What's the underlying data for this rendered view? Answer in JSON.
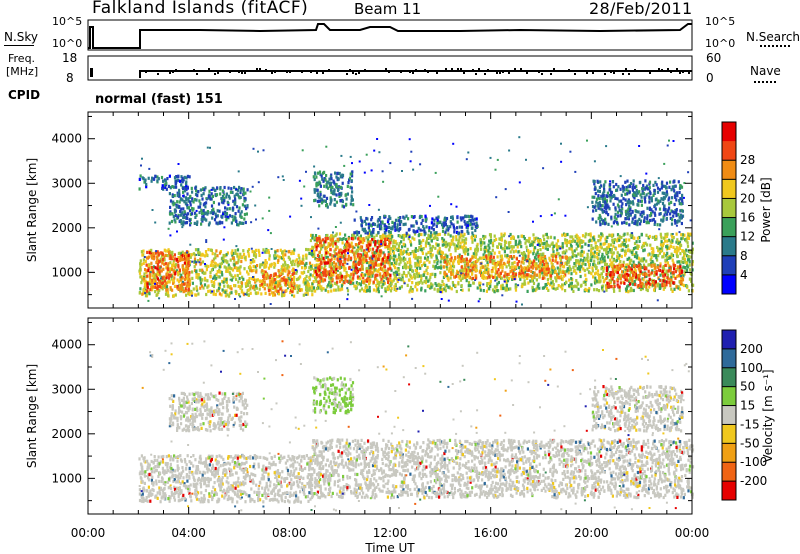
{
  "header": {
    "station": "Falkland Islands (fitACF)",
    "beam": "Beam 11",
    "date": "28/Feb/2011"
  },
  "top_panels": {
    "nsky_label": "N.Sky",
    "nsky_ticks": [
      "10^5",
      "10^0"
    ],
    "nsearch_label": "N.Search",
    "nsearch_ticks": [
      "10^5",
      "10^0"
    ],
    "freq_label_1": "Freq.",
    "freq_label_2": "[MHz]",
    "freq_ticks": [
      "18",
      "8"
    ],
    "nave_label": "Nave",
    "nave_ticks": [
      "60",
      "0"
    ],
    "cpid_label": "CPID",
    "cpid_text": "normal (fast) 151"
  },
  "chart_data": [
    {
      "type": "heatmap",
      "title": "",
      "ylabel": "Slant Range [km]",
      "xlabel": "",
      "yticks": [
        "1000",
        "2000",
        "3000",
        "4000"
      ],
      "ylim": [
        200,
        4600
      ],
      "xlim": [
        0,
        24
      ],
      "colorbar": {
        "label": "Power [dB]",
        "ticks": [
          "4",
          "8",
          "12",
          "16",
          "20",
          "24",
          "28"
        ],
        "range": [
          0,
          32
        ],
        "colors": [
          "#0000ff",
          "#1f3fb8",
          "#2a7a8a",
          "#3aa05a",
          "#a8c83c",
          "#f0c81e",
          "#f08c14",
          "#f04614",
          "#e60000"
        ]
      },
      "regions": [
        {
          "t0": 2.0,
          "t1": 8.9,
          "r0": 500,
          "r1": 1550,
          "level": 18
        },
        {
          "t0": 2.2,
          "t1": 4.0,
          "r0": 600,
          "r1": 1500,
          "level": 26
        },
        {
          "t0": 6.8,
          "t1": 8.2,
          "r0": 600,
          "r1": 1100,
          "level": 25
        },
        {
          "t0": 3.2,
          "t1": 6.3,
          "r0": 2100,
          "r1": 2950,
          "level": 8
        },
        {
          "t0": 2.0,
          "t1": 4.0,
          "r0": 2900,
          "r1": 3200,
          "level": 6
        },
        {
          "t0": 8.8,
          "t1": 24,
          "r0": 600,
          "r1": 1900,
          "level": 16
        },
        {
          "t0": 9.0,
          "t1": 12.0,
          "r0": 800,
          "r1": 1800,
          "level": 26
        },
        {
          "t0": 14.0,
          "t1": 19.0,
          "r0": 900,
          "r1": 1400,
          "level": 24
        },
        {
          "t0": 20.5,
          "t1": 23.6,
          "r0": 700,
          "r1": 1200,
          "level": 27
        },
        {
          "t0": 8.9,
          "t1": 10.5,
          "r0": 2500,
          "r1": 3300,
          "level": 8
        },
        {
          "t0": 20.0,
          "t1": 23.6,
          "r0": 2100,
          "r1": 3100,
          "level": 7
        },
        {
          "t0": 10.5,
          "t1": 15.5,
          "r0": 1900,
          "r1": 2300,
          "level": 6
        }
      ]
    },
    {
      "type": "heatmap",
      "title": "",
      "ylabel": "Slant Range [km]",
      "xlabel": "Time UT",
      "xticks": [
        "00:00",
        "04:00",
        "08:00",
        "12:00",
        "16:00",
        "20:00",
        "00:00"
      ],
      "yticks": [
        "1000",
        "2000",
        "3000",
        "4000"
      ],
      "ylim": [
        200,
        4600
      ],
      "xlim": [
        0,
        24
      ],
      "colorbar": {
        "label": "Velocity [m s⁻¹]",
        "ticks": [
          "200",
          "100",
          "50",
          "15",
          "-15",
          "-50",
          "-100",
          "-200"
        ],
        "colors": [
          "#2020b0",
          "#2f6a9a",
          "#3a8a5a",
          "#7ccc3c",
          "#c8c8c0",
          "#f0c81e",
          "#f0a014",
          "#f06414",
          "#e60000"
        ]
      },
      "regions": [
        {
          "t0": 2.0,
          "t1": 8.9,
          "r0": 500,
          "r1": 1550,
          "level": 0
        },
        {
          "t0": 3.2,
          "t1": 6.3,
          "r0": 2100,
          "r1": 2950,
          "level": 0
        },
        {
          "t0": 8.8,
          "t1": 24,
          "r0": 600,
          "r1": 1900,
          "level": 0
        },
        {
          "t0": 8.9,
          "t1": 10.5,
          "r0": 2500,
          "r1": 3300,
          "level": 20
        },
        {
          "t0": 20.0,
          "t1": 23.6,
          "r0": 2100,
          "r1": 3100,
          "level": 0
        }
      ]
    }
  ]
}
